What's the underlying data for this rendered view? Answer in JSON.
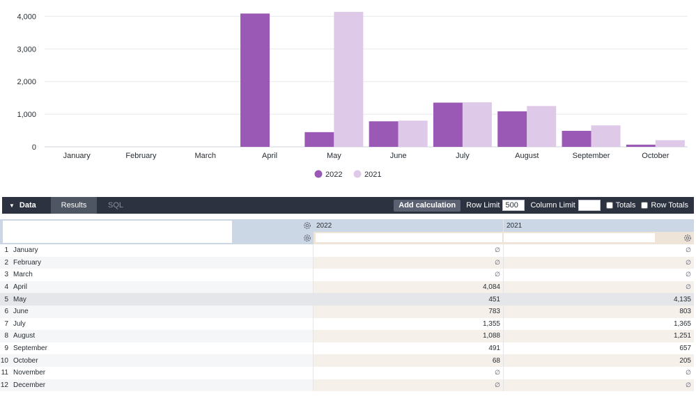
{
  "chart_data": {
    "type": "bar",
    "categories": [
      "January",
      "February",
      "March",
      "April",
      "May",
      "June",
      "July",
      "August",
      "September",
      "October"
    ],
    "series": [
      {
        "name": "2022",
        "color": "#9b59b6",
        "values": [
          null,
          null,
          null,
          4084,
          451,
          783,
          1355,
          1088,
          491,
          68
        ]
      },
      {
        "name": "2021",
        "color": "#dfc9e8",
        "values": [
          null,
          null,
          null,
          null,
          4135,
          803,
          1365,
          1251,
          657,
          205
        ]
      }
    ],
    "ylim": [
      0,
      4200
    ],
    "yticks": [
      0,
      1000,
      2000,
      3000,
      4000
    ],
    "ytick_labels": [
      "0",
      "1,000",
      "2,000",
      "3,000",
      "4,000"
    ],
    "grid": true,
    "legend": "bottom-center"
  },
  "toolbar": {
    "data_label": "Data",
    "tab_results": "Results",
    "tab_sql": "SQL",
    "add_calc": "Add calculation",
    "row_limit_label": "Row Limit",
    "row_limit_value": "500",
    "column_limit_label": "Column Limit",
    "column_limit_value": "",
    "totals_label": "Totals",
    "row_totals_label": "Row Totals"
  },
  "table": {
    "pivot_headers": [
      "2022",
      "2021"
    ],
    "null_symbol": "∅",
    "rows": [
      {
        "n": "1",
        "month": "January",
        "v2022": "∅",
        "v2021": "∅"
      },
      {
        "n": "2",
        "month": "February",
        "v2022": "∅",
        "v2021": "∅"
      },
      {
        "n": "3",
        "month": "March",
        "v2022": "∅",
        "v2021": "∅"
      },
      {
        "n": "4",
        "month": "April",
        "v2022": "4,084",
        "v2021": "∅"
      },
      {
        "n": "5",
        "month": "May",
        "v2022": "451",
        "v2021": "4,135"
      },
      {
        "n": "6",
        "month": "June",
        "v2022": "783",
        "v2021": "803"
      },
      {
        "n": "7",
        "month": "July",
        "v2022": "1,355",
        "v2021": "1,365"
      },
      {
        "n": "8",
        "month": "August",
        "v2022": "1,088",
        "v2021": "1,251"
      },
      {
        "n": "9",
        "month": "September",
        "v2022": "491",
        "v2021": "657"
      },
      {
        "n": "10",
        "month": "October",
        "v2022": "68",
        "v2021": "205"
      },
      {
        "n": "11",
        "month": "November",
        "v2022": "∅",
        "v2021": "∅"
      },
      {
        "n": "12",
        "month": "December",
        "v2022": "∅",
        "v2021": "∅"
      }
    ]
  }
}
